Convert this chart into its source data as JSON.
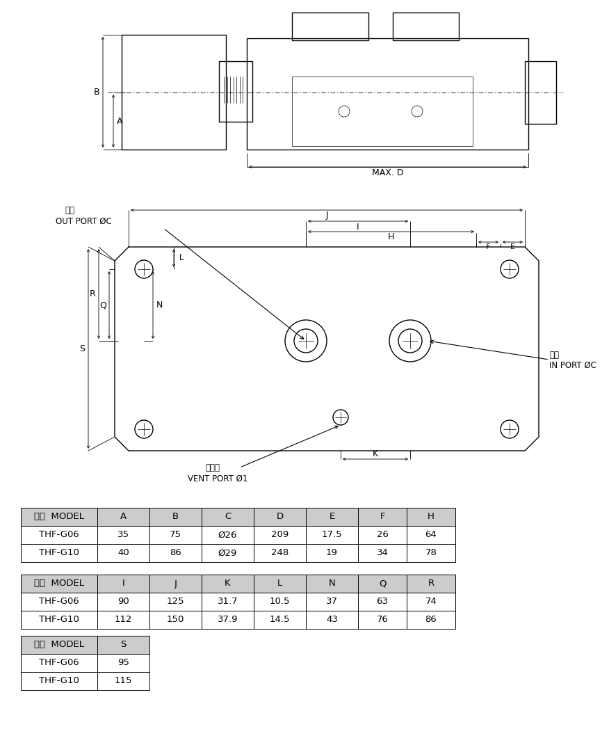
{
  "bg_color": "#ffffff",
  "line_color": "#000000",
  "table1_headers": [
    "型式  MODEL",
    "A",
    "B",
    "C",
    "D",
    "E",
    "F",
    "H"
  ],
  "table1_rows": [
    [
      "THF-G06",
      "35",
      "75",
      "Ø26",
      "209",
      "17.5",
      "26",
      "64"
    ],
    [
      "THF-G10",
      "40",
      "86",
      "Ø29",
      "248",
      "19",
      "34",
      "78"
    ]
  ],
  "table2_headers": [
    "型式  MODEL",
    "I",
    "J",
    "K",
    "L",
    "N",
    "Q",
    "R"
  ],
  "table2_rows": [
    [
      "THF-G06",
      "90",
      "125",
      "31.7",
      "10.5",
      "37",
      "63",
      "74"
    ],
    [
      "THF-G10",
      "112",
      "150",
      "37.9",
      "14.5",
      "43",
      "76",
      "86"
    ]
  ],
  "table3_headers": [
    "型式  MODEL",
    "S"
  ],
  "table3_rows": [
    [
      "THF-G06",
      "95"
    ],
    [
      "THF-G10",
      "115"
    ]
  ],
  "header_bg": "#cccccc",
  "table_text_size": 9.5,
  "label_size": 9,
  "annot_size": 8.5
}
